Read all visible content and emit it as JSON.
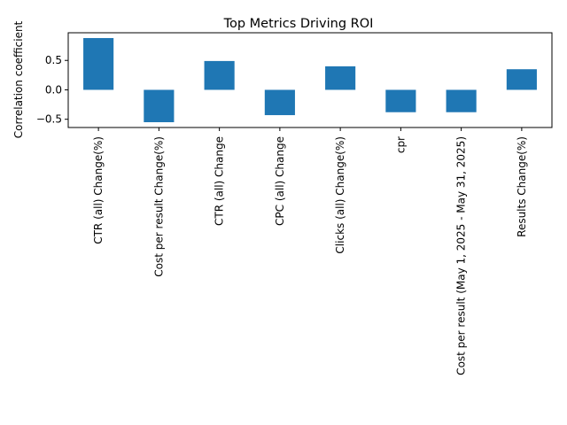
{
  "chart_data": {
    "type": "bar",
    "title": "Top Metrics Driving ROI",
    "xlabel": "",
    "ylabel": "Correlation coefficient",
    "categories": [
      "CTR (all) Change(%)",
      "Cost per result Change(%)",
      "CTR (all) Change",
      "CPC (all) Change",
      "Clicks (all) Change(%)",
      "cpr",
      "Cost per result (May 1, 2025 - May 31, 2025)",
      "Results Change(%)"
    ],
    "values": [
      0.88,
      -0.55,
      0.49,
      -0.43,
      0.4,
      -0.38,
      -0.38,
      0.35
    ],
    "ylim": [
      -0.64,
      0.97
    ],
    "yticks": [
      -0.5,
      0.0,
      0.5
    ],
    "ytick_labels": [
      "−0.5",
      "0.0",
      "0.5"
    ],
    "bar_color": "#1f77b4",
    "grid": false,
    "legend": "none"
  }
}
